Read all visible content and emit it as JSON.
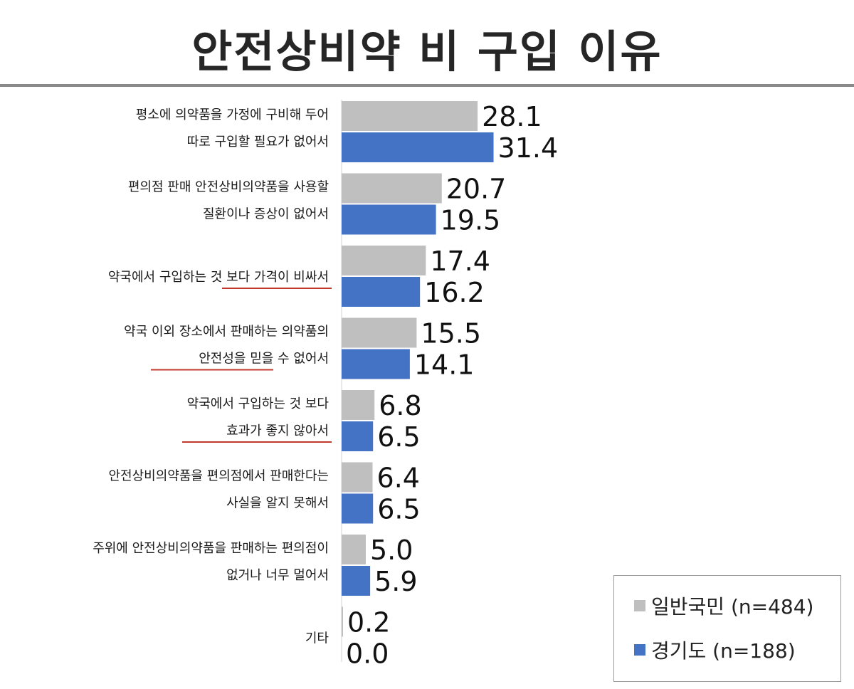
{
  "chart_data": {
    "type": "bar",
    "orientation": "horizontal",
    "title": "안전상비약 비 구입 이유",
    "categories": [
      [
        "평소에 의약품을 가정에 구비해 두어",
        "따로 구입할 필요가 없어서"
      ],
      [
        "편의점 판매 안전상비의약품을 사용할",
        "질환이나 증상이 없어서"
      ],
      [
        "약국에서 구입하는 것 보다 가격이 비싸서"
      ],
      [
        "약국 이외 장소에서 판매하는 의약품의",
        "안전성을 믿을 수 없어서"
      ],
      [
        "약국에서 구입하는 것 보다",
        "효과가 좋지 않아서"
      ],
      [
        "안전상비의약품을 편의점에서 판매한다는",
        "사실을 알지 못해서"
      ],
      [
        "주위에 안전상비의약품을 판매하는 편의점이",
        "없거나 너무 멀어서"
      ],
      [
        "기타"
      ]
    ],
    "series": [
      {
        "name": "일반국민 (n=484)",
        "color": "#bfbfbf",
        "values": [
          28.1,
          20.7,
          17.4,
          15.5,
          6.8,
          6.4,
          5.0,
          0.2
        ]
      },
      {
        "name": "경기도 (n=188)",
        "color": "#4472c4",
        "values": [
          31.4,
          19.5,
          16.2,
          14.1,
          6.5,
          6.5,
          5.9,
          0.0
        ]
      }
    ],
    "value_labels": [
      [
        "28.1",
        "20.7",
        "17.4",
        "15.5",
        "6.8",
        "6.4",
        "5.0",
        "0.2"
      ],
      [
        "31.4",
        "19.5",
        "16.2",
        "14.1",
        "6.5",
        "6.5",
        "5.9",
        "0.0"
      ]
    ],
    "xlim": [
      0,
      35
    ],
    "grid": false,
    "legend_position": "bottom-right",
    "underline_color": "#c0392b"
  },
  "legend": {
    "item0": "일반국민 (n=484)",
    "item1": "경기도 (n=188)"
  }
}
